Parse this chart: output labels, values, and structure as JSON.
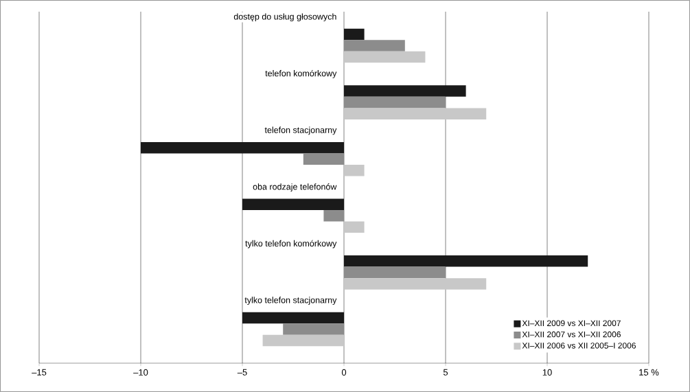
{
  "chart_data": {
    "type": "bar",
    "orientation": "horizontal",
    "categories": [
      "dostęp do usług głosowych",
      "telefon komórkowy",
      "telefon stacjonarny",
      "oba rodzaje telefonów",
      "tylko telefon komórkowy",
      "tylko telefon stacjonarny"
    ],
    "series": [
      {
        "name": "XI–XII 2009 vs XI–XII 2007",
        "color": "#1a1a1a",
        "values": [
          1,
          6,
          -10,
          -5,
          12,
          -5
        ]
      },
      {
        "name": "XI–XII 2007 vs XI–XII 2006",
        "color": "#8c8c8c",
        "values": [
          3,
          5,
          -2,
          -1,
          5,
          -3
        ]
      },
      {
        "name": "XI–XII 2006 vs XII 2005–I 2006",
        "color": "#c8c8c8",
        "values": [
          4,
          7,
          1,
          1,
          7,
          -4
        ]
      }
    ],
    "xlim": [
      -15,
      15
    ],
    "xticks": [
      {
        "value": -15,
        "label": "–15"
      },
      {
        "value": -10,
        "label": "–10"
      },
      {
        "value": -5,
        "label": "–5"
      },
      0,
      5,
      10,
      {
        "value": 15,
        "label": "15 %"
      }
    ],
    "grid": "x",
    "legend": "bottom right"
  }
}
